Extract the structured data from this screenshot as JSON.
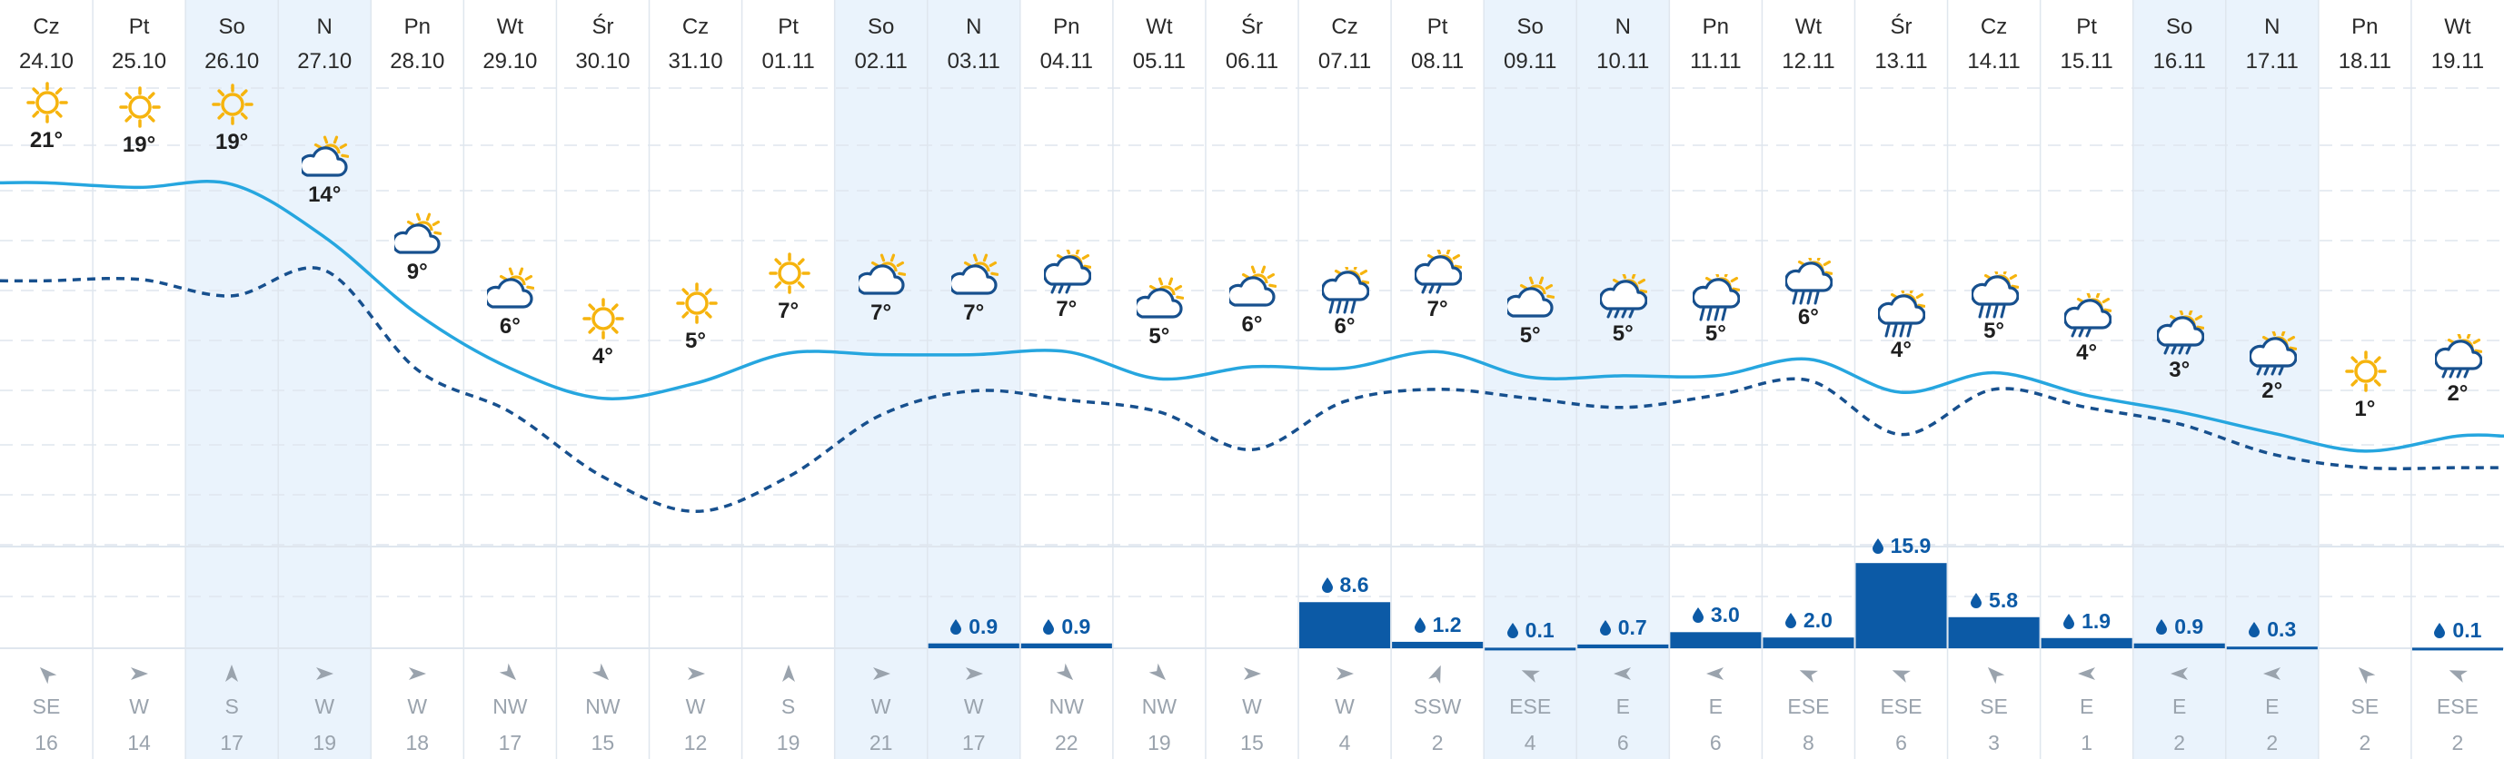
{
  "colors": {
    "weekend_bg": "#eaf3fc",
    "max_temp_line": "#26a6df",
    "min_temp_line": "#17508e",
    "precip_bar": "#0c5aa6",
    "sun": "#f6b40e",
    "cloud": "#17508e",
    "grid": "#dfe6ee"
  },
  "days": [
    {
      "day": "Cz",
      "date": "24.10",
      "weekend": false,
      "icon": "sun-icon",
      "temp": "21°",
      "max": 21,
      "min": 14.5,
      "precip": null,
      "wind_dir": "SE",
      "wind_speed": "16",
      "wind_deg": 315
    },
    {
      "day": "Pt",
      "date": "25.10",
      "weekend": false,
      "icon": "sun-icon",
      "temp": "19°",
      "max": 20.7,
      "min": 14.6,
      "precip": null,
      "wind_dir": "W",
      "wind_speed": "14",
      "wind_deg": 90
    },
    {
      "day": "So",
      "date": "26.10",
      "weekend": true,
      "icon": "sun-icon",
      "temp": "19°",
      "max": 20.9,
      "min": 13.5,
      "precip": null,
      "wind_dir": "S",
      "wind_speed": "17",
      "wind_deg": 0
    },
    {
      "day": "N",
      "date": "27.10",
      "weekend": true,
      "icon": "partly-cloudy-icon",
      "temp": "14°",
      "max": 17.4,
      "min": 15.2,
      "precip": null,
      "wind_dir": "W",
      "wind_speed": "19",
      "wind_deg": 90
    },
    {
      "day": "Pn",
      "date": "28.10",
      "weekend": false,
      "icon": "partly-cloudy-icon",
      "temp": "9°",
      "max": 12.3,
      "min": 8.6,
      "precip": null,
      "wind_dir": "W",
      "wind_speed": "18",
      "wind_deg": 90
    },
    {
      "day": "Wt",
      "date": "29.10",
      "weekend": false,
      "icon": "partly-cloudy-icon",
      "temp": "6°",
      "max": 8.7,
      "min": 5.8,
      "precip": null,
      "wind_dir": "NW",
      "wind_speed": "17",
      "wind_deg": 135
    },
    {
      "day": "Śr",
      "date": "30.10",
      "weekend": false,
      "icon": "sun-icon",
      "temp": "4°",
      "max": 6.7,
      "min": 1.5,
      "precip": null,
      "wind_dir": "NW",
      "wind_speed": "15",
      "wind_deg": 135
    },
    {
      "day": "Cz",
      "date": "31.10",
      "weekend": false,
      "icon": "sun-icon",
      "temp": "5°",
      "max": 7.7,
      "min": -0.8,
      "precip": null,
      "wind_dir": "W",
      "wind_speed": "12",
      "wind_deg": 90
    },
    {
      "day": "Pt",
      "date": "01.11",
      "weekend": false,
      "icon": "sun-icon",
      "temp": "7°",
      "max": 9.7,
      "min": 1.5,
      "precip": null,
      "wind_dir": "S",
      "wind_speed": "19",
      "wind_deg": 0
    },
    {
      "day": "So",
      "date": "02.11",
      "weekend": true,
      "icon": "partly-cloudy-icon",
      "temp": "7°",
      "max": 9.6,
      "min": 5.6,
      "precip": null,
      "wind_dir": "W",
      "wind_speed": "21",
      "wind_deg": 90
    },
    {
      "day": "N",
      "date": "03.11",
      "weekend": true,
      "icon": "partly-cloudy-icon",
      "temp": "7°",
      "max": 9.6,
      "min": 7.2,
      "precip": "0.9",
      "precip_val": 0.9,
      "wind_dir": "W",
      "wind_speed": "17",
      "wind_deg": 90
    },
    {
      "day": "Pn",
      "date": "04.11",
      "weekend": false,
      "icon": "cloud-rain-sun-icon",
      "temp": "7°",
      "max": 9.8,
      "min": 6.6,
      "precip": "0.9",
      "precip_val": 0.9,
      "wind_dir": "NW",
      "wind_speed": "22",
      "wind_deg": 135
    },
    {
      "day": "Wt",
      "date": "05.11",
      "weekend": false,
      "icon": "partly-cloudy-icon",
      "temp": "5°",
      "max": 8.0,
      "min": 5.8,
      "precip": null,
      "wind_dir": "NW",
      "wind_speed": "19",
      "wind_deg": 135
    },
    {
      "day": "Śr",
      "date": "06.11",
      "weekend": false,
      "icon": "partly-cloudy-icon",
      "temp": "6°",
      "max": 8.8,
      "min": 3.3,
      "precip": null,
      "wind_dir": "W",
      "wind_speed": "15",
      "wind_deg": 90
    },
    {
      "day": "Cz",
      "date": "07.11",
      "weekend": false,
      "icon": "heavy-rain-sun-icon",
      "temp": "6°",
      "max": 8.7,
      "min": 6.5,
      "precip": "8.6",
      "precip_val": 8.6,
      "wind_dir": "W",
      "wind_speed": "4",
      "wind_deg": 90
    },
    {
      "day": "Pt",
      "date": "08.11",
      "weekend": false,
      "icon": "cloud-rain-sun-icon",
      "temp": "7°",
      "max": 9.8,
      "min": 7.3,
      "precip": "1.2",
      "precip_val": 1.2,
      "wind_dir": "SSW",
      "wind_speed": "2",
      "wind_deg": 22
    },
    {
      "day": "So",
      "date": "09.11",
      "weekend": true,
      "icon": "partly-cloudy-icon",
      "temp": "5°",
      "max": 8.1,
      "min": 6.7,
      "precip": "0.1",
      "precip_val": 0.1,
      "wind_dir": "ESE",
      "wind_speed": "4",
      "wind_deg": -68
    },
    {
      "day": "N",
      "date": "10.11",
      "weekend": true,
      "icon": "cloud-drizzle-sun-icon",
      "temp": "5°",
      "max": 8.2,
      "min": 6.1,
      "precip": "0.7",
      "precip_val": 0.7,
      "wind_dir": "E",
      "wind_speed": "6",
      "wind_deg": -90
    },
    {
      "day": "Pn",
      "date": "11.11",
      "weekend": false,
      "icon": "heavy-rain-sun-icon",
      "temp": "5°",
      "max": 8.2,
      "min": 6.9,
      "precip": "3.0",
      "precip_val": 3.0,
      "wind_dir": "E",
      "wind_speed": "6",
      "wind_deg": -90
    },
    {
      "day": "Wt",
      "date": "12.11",
      "weekend": false,
      "icon": "heavy-rain-sun-icon",
      "temp": "6°",
      "max": 9.3,
      "min": 7.9,
      "precip": "2.0",
      "precip_val": 2.0,
      "wind_dir": "ESE",
      "wind_speed": "8",
      "wind_deg": -68
    },
    {
      "day": "Śr",
      "date": "13.11",
      "weekend": false,
      "icon": "heavy-rain-sun-icon",
      "temp": "4°",
      "max": 7.1,
      "min": 4.3,
      "precip": "15.9",
      "precip_val": 15.9,
      "wind_dir": "ESE",
      "wind_speed": "6",
      "wind_deg": -68
    },
    {
      "day": "Cz",
      "date": "14.11",
      "weekend": false,
      "icon": "heavy-rain-sun-icon",
      "temp": "5°",
      "max": 8.4,
      "min": 7.3,
      "precip": "5.8",
      "precip_val": 5.8,
      "wind_dir": "SE",
      "wind_speed": "3",
      "wind_deg": -45
    },
    {
      "day": "Pt",
      "date": "15.11",
      "weekend": false,
      "icon": "cloud-rain-sun-icon",
      "temp": "4°",
      "max": 6.9,
      "min": 6.1,
      "precip": "1.9",
      "precip_val": 1.9,
      "wind_dir": "E",
      "wind_speed": "1",
      "wind_deg": -90
    },
    {
      "day": "So",
      "date": "16.11",
      "weekend": true,
      "icon": "cloud-drizzle-sun-icon",
      "temp": "3°",
      "max": 5.8,
      "min": 5.0,
      "precip": "0.9",
      "precip_val": 0.9,
      "wind_dir": "E",
      "wind_speed": "2",
      "wind_deg": -90
    },
    {
      "day": "N",
      "date": "17.11",
      "weekend": true,
      "icon": "cloud-drizzle-sun-icon",
      "temp": "2°",
      "max": 4.4,
      "min": 3.0,
      "precip": "0.3",
      "precip_val": 0.3,
      "wind_dir": "E",
      "wind_speed": "2",
      "wind_deg": -90
    },
    {
      "day": "Pn",
      "date": "18.11",
      "weekend": false,
      "icon": "sun-icon",
      "temp": "1°",
      "max": 3.2,
      "min": 2.1,
      "precip": null,
      "wind_dir": "SE",
      "wind_speed": "2",
      "wind_deg": -45
    },
    {
      "day": "Wt",
      "date": "19.11",
      "weekend": false,
      "icon": "cloud-drizzle-sun-icon",
      "temp": "2°",
      "max": 4.2,
      "min": 2.1,
      "precip": "0.1",
      "precip_val": 0.1,
      "wind_dir": "ESE",
      "wind_speed": "2",
      "wind_deg": -68
    }
  ]
}
